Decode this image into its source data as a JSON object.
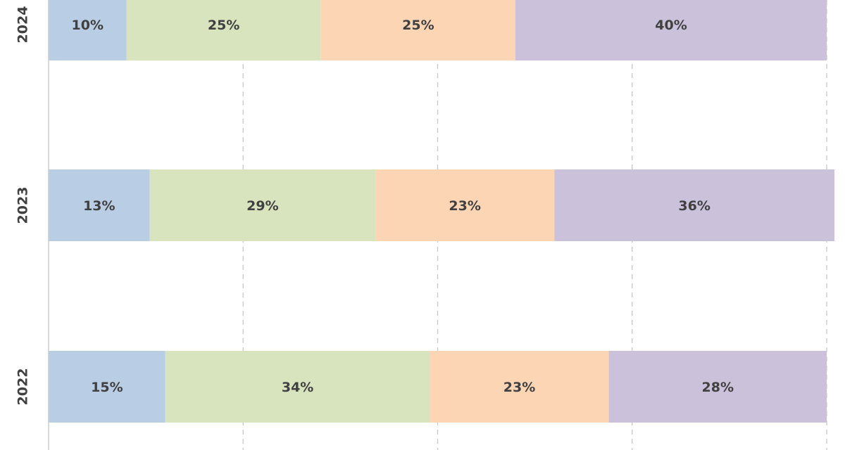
{
  "chart_data": {
    "type": "bar",
    "orientation": "horizontal",
    "stacked": "percent",
    "categories": [
      "2024",
      "2023",
      "2022"
    ],
    "series": [
      {
        "values": [
          10,
          13,
          15
        ],
        "labels": [
          "10%",
          "13%",
          "15%"
        ],
        "color": "#b9cde5"
      },
      {
        "values": [
          25,
          29,
          34
        ],
        "labels": [
          "25%",
          "29%",
          "34%"
        ],
        "color": "#d7e4bd"
      },
      {
        "values": [
          25,
          23,
          23
        ],
        "labels": [
          "25%",
          "23%",
          "23%"
        ],
        "color": "#fcd5b5"
      },
      {
        "values": [
          40,
          36,
          28
        ],
        "labels": [
          "40%",
          "36%",
          "28%"
        ],
        "color": "#ccc1da"
      }
    ],
    "xlim": [
      0,
      100
    ],
    "grid": "vertical dashed gridlines at 25% intervals",
    "legend": "none"
  }
}
